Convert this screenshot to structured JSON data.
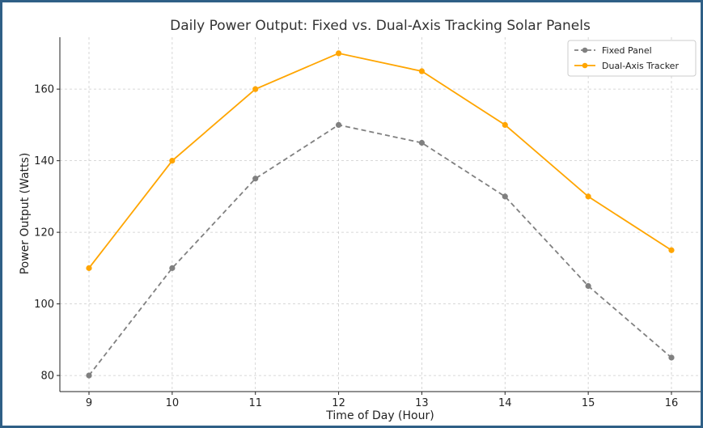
{
  "chart_data": {
    "type": "line",
    "title": "Daily Power Output: Fixed vs. Dual-Axis Tracking Solar Panels",
    "xlabel": "Time of Day (Hour)",
    "ylabel": "Power Output (Watts)",
    "x": [
      9,
      10,
      11,
      12,
      13,
      14,
      15,
      16
    ],
    "xlim": [
      8.65,
      16.35
    ],
    "ylim": [
      75.5,
      174.5
    ],
    "x_ticks": [
      "9",
      "10",
      "11",
      "12",
      "13",
      "14",
      "15",
      "16"
    ],
    "y_ticks": [
      80,
      100,
      120,
      140,
      160
    ],
    "grid": true,
    "legend_position": "top-right",
    "series": [
      {
        "name": "Fixed Panel",
        "values": [
          80,
          110,
          135,
          150,
          145,
          130,
          105,
          85
        ],
        "color": "#808080",
        "line_style": "dashed",
        "marker": "circle"
      },
      {
        "name": "Dual-Axis Tracker",
        "values": [
          110,
          140,
          160,
          170,
          165,
          150,
          130,
          115
        ],
        "color": "#FFA500",
        "line_style": "solid",
        "marker": "circle"
      }
    ]
  }
}
